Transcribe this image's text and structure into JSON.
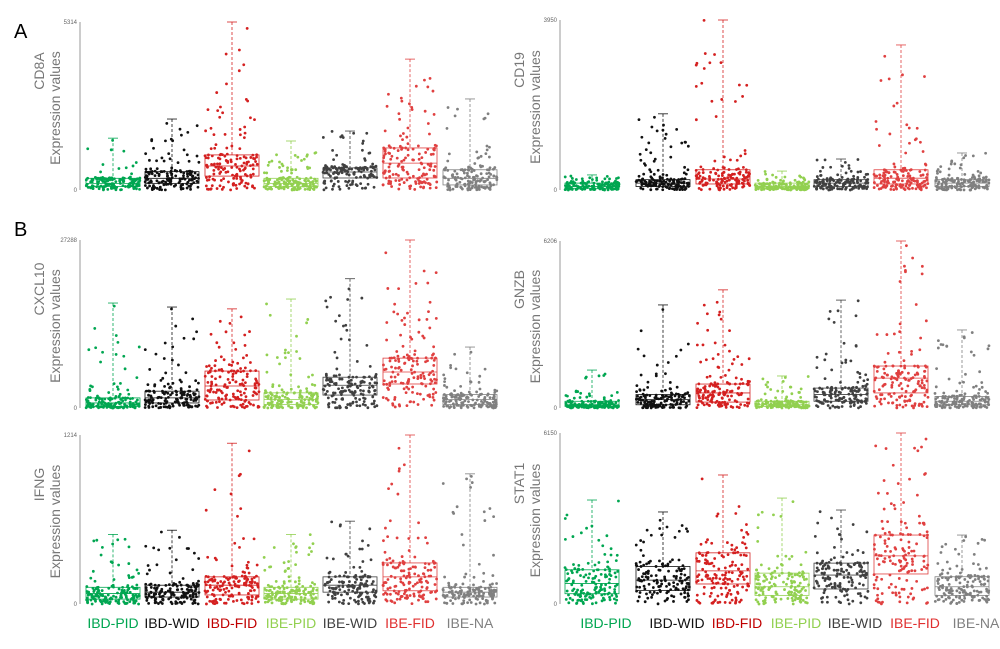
{
  "panel_letters": [
    "A",
    "B"
  ],
  "groups": [
    "IBD-PID",
    "IBD-WID",
    "IBD-FID",
    "IBE-PID",
    "IBE-WID",
    "IBE-FID",
    "IBE-NA"
  ],
  "group_colors": [
    "#00a651",
    "#111111",
    "#d42020",
    "#92d050",
    "#404040",
    "#e04040",
    "#808080"
  ],
  "label_colors": [
    "#00a651",
    "#111111",
    "#c00000",
    "#92d050",
    "#404040",
    "#e03030",
    "#808080"
  ],
  "y_axis_label": "Expression values",
  "chart_data": [
    {
      "type": "box",
      "gene": "CD8A",
      "ylabel": "Expression values",
      "ylim": [
        0,
        5314
      ],
      "ticks": [
        "0",
        "5314"
      ],
      "stats_order": [
        "whisker_max",
        "q3",
        "median",
        "q1"
      ],
      "boxes": [
        [
          1640,
          370,
          210,
          110
        ],
        [
          2245,
          580,
          370,
          210
        ],
        [
          5314,
          1110,
          760,
          440
        ],
        [
          1550,
          370,
          210,
          110
        ],
        [
          1865,
          700,
          570,
          380
        ],
        [
          4140,
          1330,
          850,
          380
        ],
        [
          2880,
          640,
          370,
          160
        ]
      ]
    },
    {
      "type": "box",
      "gene": "CD19",
      "ylabel": "Expression values",
      "ylim": [
        0,
        3950
      ],
      "ticks": [
        "0",
        "3950"
      ],
      "stats_order": [
        "whisker_max",
        "q3",
        "median",
        "q1"
      ],
      "boxes": [
        [
          350,
          160,
          80,
          40
        ],
        [
          1770,
          240,
          160,
          80
        ],
        [
          3950,
          470,
          255,
          140
        ],
        [
          440,
          160,
          80,
          40
        ],
        [
          720,
          240,
          160,
          80
        ],
        [
          3370,
          470,
          275,
          140
        ],
        [
          860,
          240,
          160,
          80
        ]
      ]
    },
    {
      "type": "box",
      "gene": "CXCL10",
      "ylabel": "Expression values",
      "ylim": [
        0,
        27288
      ],
      "ticks": [
        "0",
        "27288"
      ],
      "stats_order": [
        "whisker_max",
        "q3",
        "median",
        "q1"
      ],
      "boxes": [
        [
          17050,
          1640,
          820,
          270
        ],
        [
          16400,
          2730,
          1640,
          820
        ],
        [
          16100,
          6000,
          3570,
          1300
        ],
        [
          17700,
          2460,
          1360,
          550
        ],
        [
          21000,
          5000,
          3700,
          2100
        ],
        [
          27288,
          8100,
          5850,
          3900
        ],
        [
          9900,
          2180,
          1360,
          550
        ]
      ]
    },
    {
      "type": "box",
      "gene": "GNZB",
      "ylabel": "Expression values",
      "ylim": [
        0,
        6206
      ],
      "ticks": [
        "0",
        "6206"
      ],
      "stats_order": [
        "whisker_max",
        "q3",
        "median",
        "q1"
      ],
      "boxes": [
        [
          1410,
          250,
          120,
          60
        ],
        [
          3830,
          500,
          310,
          120
        ],
        [
          4390,
          890,
          560,
          220
        ],
        [
          1190,
          250,
          120,
          60
        ],
        [
          4010,
          740,
          500,
          250
        ],
        [
          6206,
          1560,
          1110,
          560
        ],
        [
          2900,
          430,
          250,
          120
        ]
      ]
    },
    {
      "type": "box",
      "gene": "IFNG",
      "ylabel": "Expression values",
      "ylim": [
        0,
        1214
      ],
      "ticks": [
        "0",
        "1214"
      ],
      "stats_order": [
        "whisker_max",
        "q3",
        "median",
        "q1"
      ],
      "boxes": [
        [
          500,
          120,
          75,
          35
        ],
        [
          530,
          135,
          85,
          50
        ],
        [
          1155,
          195,
          135,
          65
        ],
        [
          500,
          120,
          75,
          35
        ],
        [
          595,
          195,
          135,
          85
        ],
        [
          1214,
          295,
          195,
          95
        ],
        [
          935,
          120,
          85,
          50
        ]
      ]
    },
    {
      "type": "box",
      "gene": "STAT1",
      "ylabel": "Expression values",
      "ylim": [
        0,
        6150
      ],
      "ticks": [
        "0",
        "6150"
      ],
      "stats_order": [
        "whisker_max",
        "q3",
        "median",
        "q1"
      ],
      "boxes": [
        [
          3740,
          1230,
          740,
          370
        ],
        [
          3310,
          1350,
          860,
          490
        ],
        [
          4640,
          1840,
          1190,
          720
        ],
        [
          3810,
          1110,
          620,
          310
        ],
        [
          3380,
          1470,
          1040,
          540
        ],
        [
          6150,
          2480,
          1730,
          1080
        ],
        [
          2480,
          980,
          620,
          310
        ]
      ]
    }
  ]
}
